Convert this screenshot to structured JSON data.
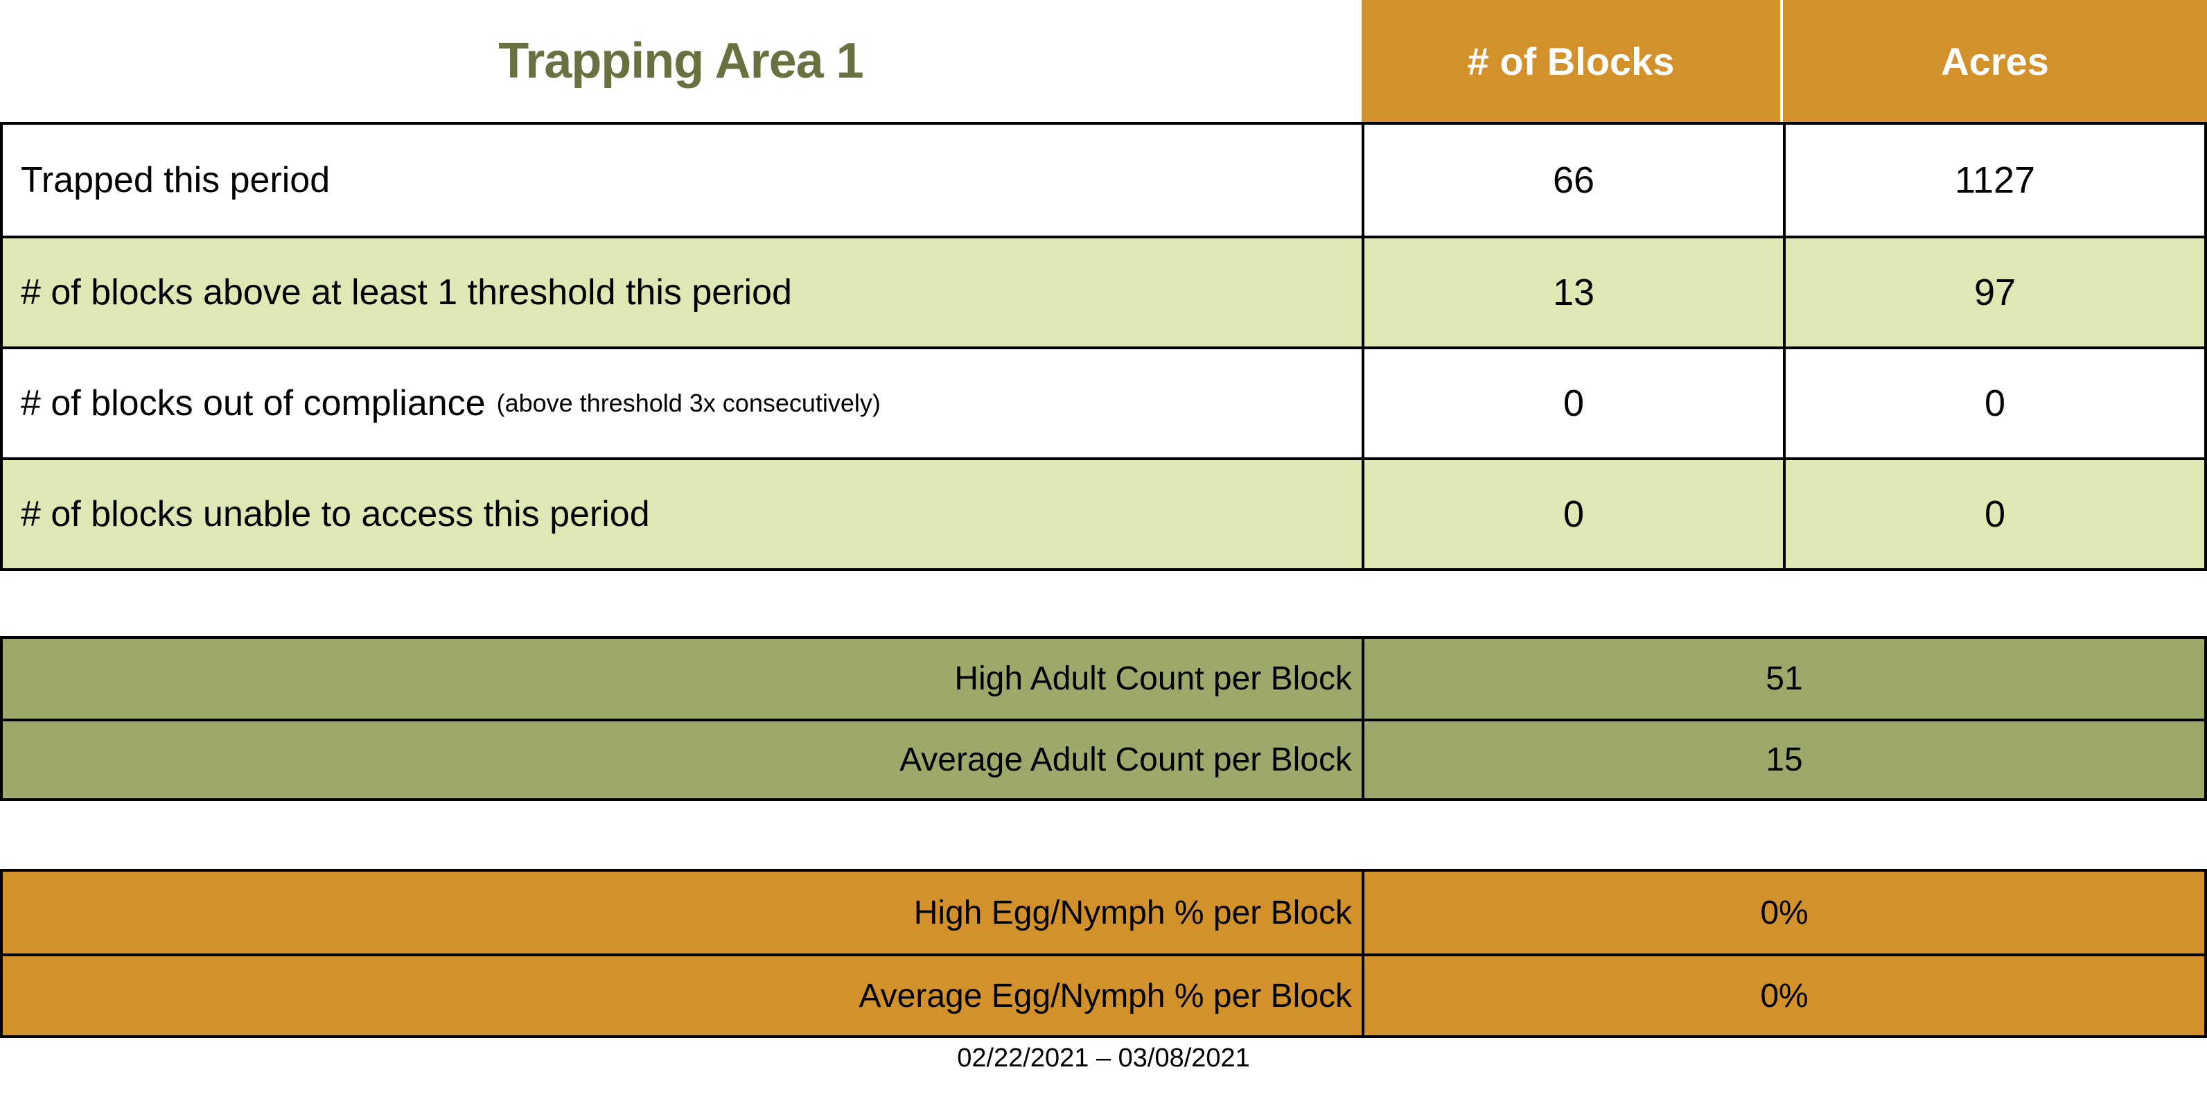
{
  "page": {
    "title": "Trapping Area 1",
    "date_range": "02/22/2021 – 03/08/2021"
  },
  "colors": {
    "header_orange": "#D3912C",
    "light_green_row": "#DDE8B5",
    "olive_green": "#9DA96A",
    "title_green": "#687241",
    "header_text": "#FFFFFF",
    "body_text": "#000000",
    "border": "#000000"
  },
  "main_table": {
    "columns": [
      "# of Blocks",
      "Acres"
    ],
    "rows": [
      {
        "label": "Trapped this period",
        "blocks": "66",
        "acres": "1127"
      },
      {
        "label": "# of blocks above at least 1 threshold this period",
        "blocks": "13",
        "acres": "97"
      },
      {
        "label": "# of blocks out of compliance",
        "note": "(above threshold 3x consecutively)",
        "blocks": "0",
        "acres": "0"
      },
      {
        "label": "# of blocks unable to access this period",
        "blocks": "0",
        "acres": "0"
      }
    ]
  },
  "adult_counts": {
    "rows": [
      {
        "label": "High Adult Count per Block",
        "value": "51"
      },
      {
        "label": "Average Adult Count per Block",
        "value": "15"
      }
    ]
  },
  "egg_nymph": {
    "rows": [
      {
        "label": "High Egg/Nymph % per Block",
        "value": "0%"
      },
      {
        "label": "Average Egg/Nymph % per Block",
        "value": "0%"
      }
    ]
  }
}
